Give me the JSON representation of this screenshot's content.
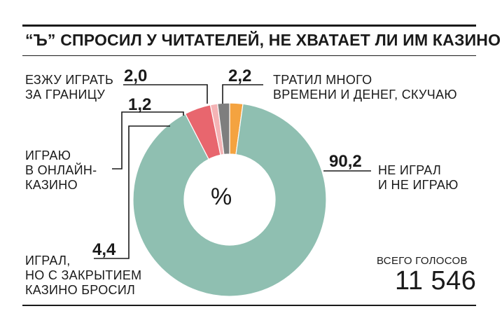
{
  "title": "“Ъ” СПРОСИЛ У ЧИТАТЕЛЕЙ, НЕ ХВАТАЕТ ЛИ ИМ КАЗИНО",
  "center_label": "%",
  "total": {
    "label": "ВСЕГО ГОЛОСОВ",
    "value": "11 546"
  },
  "labels": {
    "abroad": "ЕЗЖУ ИГРАТЬ\nЗА ГРАНИЦУ",
    "online": "ИГРАЮ\nВ ОНЛАЙН-\nКАЗИНО",
    "quit": "ИГРАЛ,\nНО С ЗАКРЫТИЕМ\nКАЗИНО БРОСИЛ",
    "spent": "ТРАТИЛ МНОГО\nВРЕМЕНИ И ДЕНЕГ, СКУЧАЮ",
    "never": "НЕ ИГРАЛ\nИ НЕ ИГРАЮ"
  },
  "value_labels": {
    "abroad": "2,0",
    "online": "1,2",
    "quit": "4,4",
    "spent": "2,2",
    "never": "90,2"
  },
  "chart_data": {
    "type": "pie",
    "donut": true,
    "unit": "%",
    "title": "“Ъ” СПРОСИЛ У ЧИТАТЕЛЕЙ, НЕ ХВАТАЕТ ЛИ ИМ КАЗИНО",
    "slices": [
      {
        "label": "ТРАТИЛ МНОГО ВРЕМЕНИ И ДЕНЕГ, СКУЧАЮ",
        "value": 2.2,
        "color": "#f4a340"
      },
      {
        "label": "НЕ ИГРАЛ И НЕ ИГРАЮ",
        "value": 90.2,
        "color": "#8fbfb1"
      },
      {
        "label": "ИГРАЛ, НО С ЗАКРЫТИЕМ КАЗИНО БРОСИЛ",
        "value": 4.4,
        "color": "#e8666e"
      },
      {
        "label": "ИГРАЮ В ОНЛАЙН-КАЗИНО",
        "value": 1.2,
        "color": "#f4b3b5"
      },
      {
        "label": "ЕЗЖУ ИГРАТЬ ЗА ГРАНИЦУ",
        "value": 2.0,
        "color": "#7e7e7e"
      }
    ],
    "total_votes": "11 546"
  }
}
